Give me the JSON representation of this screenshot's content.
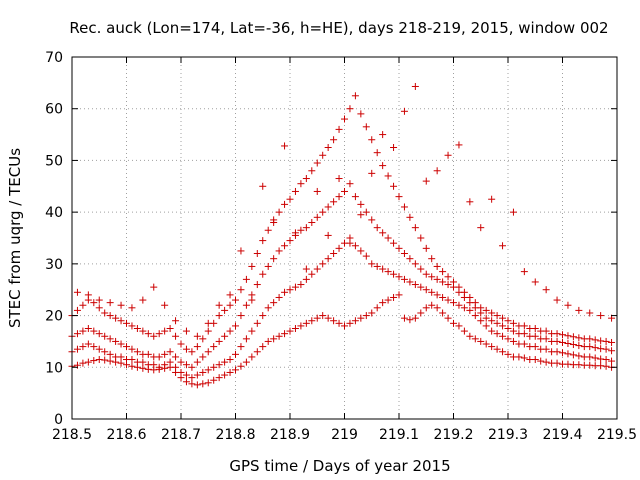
{
  "chart_data": {
    "type": "scatter",
    "title": "Rec. auck (Lon=174, Lat=-36, h=HE), days 218-219, 2015, window 002",
    "xlabel": "GPS time / Days of year 2015",
    "ylabel": "STEC from uqrg / TECUs",
    "xlim": [
      218.5,
      219.5
    ],
    "ylim": [
      0,
      70
    ],
    "x_ticks": [
      "218.5",
      "218.6",
      "218.7",
      "218.8",
      "218.9",
      "219",
      "219.1",
      "219.2",
      "219.3",
      "219.4",
      "219.5"
    ],
    "y_ticks": [
      "0",
      "10",
      "20",
      "30",
      "40",
      "50",
      "60",
      "70"
    ],
    "grid": true,
    "marker": "plus",
    "color": "#cc0000",
    "series": [
      {
        "x": [
          218.5,
          218.51,
          218.52,
          218.53,
          218.54,
          218.55,
          218.56,
          218.57,
          218.58,
          218.59,
          218.6,
          218.61,
          218.62,
          218.63,
          218.64,
          218.65,
          218.66,
          218.67,
          218.68,
          218.69,
          218.7,
          218.71,
          218.72,
          218.73,
          218.74,
          218.75,
          218.76,
          218.77,
          218.78,
          218.79,
          218.8,
          218.81,
          218.82,
          218.83,
          218.84,
          218.85,
          218.86,
          218.87,
          218.88,
          218.89,
          218.9,
          218.91,
          218.92,
          218.93,
          218.94,
          218.95,
          218.96,
          218.97,
          218.98,
          218.99,
          219.0,
          219.01,
          219.02,
          219.03,
          219.04,
          219.05,
          219.06,
          219.07,
          219.08,
          219.09,
          219.1,
          219.11,
          219.12,
          219.13,
          219.14,
          219.15,
          219.16,
          219.17,
          219.18,
          219.19,
          219.2,
          219.21,
          219.22,
          219.23,
          219.24,
          219.25,
          219.26,
          219.27,
          219.28,
          219.29,
          219.3,
          219.31,
          219.32,
          219.33,
          219.34,
          219.35,
          219.36,
          219.37,
          219.38,
          219.39,
          219.4,
          219.41,
          219.42,
          219.43,
          219.44,
          219.45,
          219.46,
          219.47,
          219.48,
          219.49
        ],
        "y": [
          10.2,
          10.4,
          10.8,
          11.0,
          11.3,
          11.5,
          11.4,
          11.2,
          11.0,
          10.8,
          10.5,
          10.2,
          10.0,
          9.8,
          9.6,
          9.5,
          9.6,
          9.8,
          10.0,
          9.0,
          8.0,
          7.2,
          6.8,
          6.6,
          6.8,
          7.0,
          7.5,
          8.0,
          8.5,
          9.0,
          9.5,
          10.2,
          11.0,
          12.0,
          13.0,
          14.0,
          15.0,
          15.5,
          16.0,
          16.5,
          17.0,
          17.5,
          18.0,
          18.5,
          19.0,
          19.5,
          20.0,
          19.5,
          19.0,
          18.5,
          18.0,
          18.5,
          19.0,
          19.5,
          20.0,
          20.5,
          21.5,
          22.5,
          23.0,
          23.5,
          24.0,
          19.5,
          19.2,
          19.5,
          20.5,
          21.5,
          22.0,
          21.5,
          20.5,
          19.5,
          18.5,
          18.0,
          17.0,
          16.0,
          15.5,
          15.0,
          14.5,
          14.0,
          13.5,
          13.0,
          12.5,
          12.0,
          12.0,
          11.8,
          11.5,
          11.5,
          11.2,
          11.0,
          10.8,
          10.8,
          10.6,
          10.6,
          10.5,
          10.5,
          10.4,
          10.4,
          10.3,
          10.3,
          10.2,
          10.0
        ]
      },
      {
        "x": [
          218.5,
          218.51,
          218.52,
          218.53,
          218.54,
          218.55,
          218.56,
          218.57,
          218.58,
          218.59,
          218.6,
          218.61,
          218.62,
          218.63,
          218.64,
          218.65,
          218.66,
          218.67,
          218.68,
          218.69,
          218.7,
          218.71,
          218.72,
          218.73,
          218.74,
          218.75,
          218.76,
          218.77,
          218.78,
          218.79,
          218.8,
          218.81,
          218.82,
          218.83,
          218.84,
          218.85,
          218.86,
          218.87,
          218.88,
          218.89,
          218.9,
          218.91,
          218.92,
          218.93,
          218.94,
          218.95,
          218.96,
          218.97,
          218.98,
          218.99,
          219.0,
          219.01,
          219.02,
          219.03,
          219.04,
          219.05,
          219.06,
          219.07,
          219.08,
          219.09,
          219.1,
          219.11,
          219.12,
          219.13,
          219.14,
          219.15,
          219.16,
          219.17,
          219.18,
          219.19,
          219.2,
          219.21,
          219.22,
          219.23,
          219.24,
          219.25,
          219.26,
          219.27,
          219.28,
          219.29,
          219.3,
          219.31,
          219.32,
          219.33,
          219.34,
          219.35,
          219.36,
          219.37,
          219.38,
          219.39,
          219.4,
          219.41,
          219.42,
          219.43,
          219.44,
          219.45,
          219.46,
          219.47,
          219.48,
          219.49
        ],
        "y": [
          13.0,
          13.5,
          14.0,
          14.5,
          14.0,
          13.5,
          13.0,
          12.5,
          12.0,
          12.0,
          11.5,
          11.5,
          11.0,
          11.0,
          10.5,
          10.5,
          10.0,
          10.5,
          11.0,
          10.0,
          9.0,
          8.5,
          8.0,
          8.5,
          9.0,
          9.5,
          10.0,
          10.5,
          11.0,
          11.5,
          12.5,
          14.0,
          15.5,
          17.0,
          18.5,
          20.0,
          21.5,
          22.5,
          23.5,
          24.5,
          25.0,
          25.5,
          26.0,
          27.0,
          28.0,
          29.0,
          30.0,
          31.0,
          32.0,
          33.0,
          34.0,
          35.0,
          33.5,
          32.5,
          31.5,
          30.0,
          29.5,
          29.0,
          28.5,
          28.0,
          27.5,
          27.0,
          26.5,
          26.0,
          25.5,
          25.0,
          24.5,
          24.0,
          23.5,
          23.0,
          22.5,
          22.0,
          21.5,
          21.0,
          20.0,
          19.0,
          18.0,
          17.0,
          16.5,
          16.0,
          15.5,
          15.0,
          14.5,
          14.5,
          14.0,
          14.0,
          13.5,
          13.5,
          13.0,
          13.0,
          12.8,
          12.6,
          12.4,
          12.2,
          12.0,
          12.0,
          11.8,
          11.6,
          11.5,
          11.2
        ]
      },
      {
        "x": [
          218.5,
          218.51,
          218.52,
          218.53,
          218.54,
          218.55,
          218.56,
          218.57,
          218.58,
          218.59,
          218.6,
          218.61,
          218.62,
          218.63,
          218.64,
          218.65,
          218.66,
          218.67,
          218.68,
          218.69,
          218.7,
          218.71,
          218.72,
          218.73,
          218.74,
          218.75,
          218.76,
          218.77,
          218.78,
          218.79,
          218.8,
          218.81,
          218.82,
          218.83,
          218.84,
          218.85,
          218.86,
          218.87,
          218.88,
          218.89,
          218.9,
          218.91,
          218.92,
          218.93,
          218.94,
          218.95,
          218.96,
          218.97,
          218.98,
          218.99,
          219.0,
          219.01,
          219.02,
          219.03,
          219.04,
          219.05,
          219.06,
          219.07,
          219.08,
          219.09,
          219.1,
          219.11,
          219.12,
          219.13,
          219.14,
          219.15,
          219.16,
          219.17,
          219.18,
          219.19,
          219.2,
          219.21,
          219.22,
          219.23,
          219.24,
          219.25,
          219.26,
          219.27,
          219.28,
          219.29,
          219.3,
          219.31,
          219.32,
          219.33,
          219.34,
          219.35,
          219.36,
          219.37,
          219.38,
          219.39,
          219.4,
          219.41,
          219.42,
          219.43,
          219.44,
          219.45,
          219.46,
          219.47,
          219.48,
          219.49
        ],
        "y": [
          16.0,
          16.5,
          17.0,
          17.5,
          17.0,
          16.5,
          16.0,
          15.5,
          15.0,
          14.5,
          14.0,
          13.5,
          13.0,
          12.5,
          12.5,
          12.0,
          12.0,
          12.5,
          13.0,
          12.0,
          11.0,
          10.5,
          10.0,
          11.0,
          12.0,
          13.0,
          14.0,
          15.0,
          16.0,
          17.0,
          18.0,
          20.0,
          22.0,
          24.0,
          26.0,
          28.0,
          29.5,
          31.0,
          32.5,
          33.5,
          34.5,
          35.5,
          36.5,
          37.0,
          38.0,
          39.0,
          40.0,
          41.0,
          42.0,
          43.0,
          44.0,
          45.5,
          43.0,
          41.5,
          40.0,
          38.5,
          37.0,
          36.0,
          35.0,
          34.0,
          33.0,
          32.0,
          31.0,
          30.0,
          29.0,
          28.0,
          27.5,
          27.0,
          26.5,
          26.0,
          25.5,
          24.5,
          23.5,
          22.5,
          21.5,
          20.5,
          19.5,
          19.0,
          18.5,
          18.0,
          17.5,
          17.0,
          16.5,
          16.5,
          16.0,
          16.0,
          15.5,
          15.5,
          15.0,
          15.0,
          14.8,
          14.6,
          14.4,
          14.2,
          14.0,
          14.0,
          13.8,
          13.6,
          13.5,
          13.2
        ]
      },
      {
        "x": [
          218.5,
          218.51,
          218.52,
          218.53,
          218.54,
          218.55,
          218.56,
          218.57,
          218.58,
          218.59,
          218.6,
          218.61,
          218.62,
          218.63,
          218.64,
          218.65,
          218.66,
          218.67,
          218.68,
          218.69,
          218.7,
          218.71,
          218.72,
          218.73,
          218.74,
          218.75,
          218.76,
          218.77,
          218.78,
          218.79,
          218.8,
          218.81,
          218.82,
          218.83,
          218.84,
          218.85,
          218.86,
          218.87,
          218.88,
          218.89,
          218.9,
          218.91,
          218.92,
          218.93,
          218.94,
          218.95,
          218.96,
          218.97,
          218.98,
          218.99,
          219.0,
          219.01,
          219.02,
          219.03,
          219.04,
          219.05,
          219.06,
          219.07,
          219.08,
          219.09,
          219.1,
          219.11,
          219.12,
          219.13,
          219.14,
          219.15,
          219.16,
          219.17,
          219.18,
          219.19,
          219.2,
          219.21,
          219.22,
          219.23,
          219.24,
          219.25,
          219.26,
          219.27,
          219.28,
          219.29,
          219.3,
          219.31,
          219.32,
          219.33,
          219.34,
          219.35,
          219.36,
          219.37,
          219.38,
          219.39,
          219.4,
          219.41,
          219.42,
          219.43,
          219.44,
          219.45,
          219.46,
          219.47,
          219.48,
          219.49
        ],
        "y": [
          20.0,
          21.0,
          22.0,
          23.0,
          22.5,
          21.5,
          20.5,
          20.0,
          19.5,
          19.0,
          18.5,
          18.0,
          17.5,
          17.0,
          16.5,
          16.0,
          16.5,
          17.0,
          17.5,
          16.0,
          14.5,
          13.5,
          13.0,
          14.0,
          15.5,
          17.0,
          18.5,
          20.0,
          21.0,
          22.0,
          23.0,
          25.0,
          27.0,
          29.5,
          32.0,
          34.5,
          36.5,
          38.5,
          40.0,
          41.5,
          42.5,
          44.0,
          45.5,
          46.5,
          48.0,
          49.5,
          51.0,
          52.5,
          54.0,
          56.0,
          58.0,
          60.0,
          62.5,
          59.0,
          56.5,
          54.0,
          51.5,
          49.0,
          47.0,
          45.0,
          43.0,
          41.0,
          39.0,
          37.0,
          35.0,
          33.0,
          31.0,
          29.5,
          28.5,
          27.5,
          26.5,
          25.5,
          24.5,
          23.5,
          22.5,
          21.5,
          21.0,
          20.5,
          20.0,
          19.5,
          19.0,
          18.5,
          18.0,
          18.0,
          17.5,
          17.5,
          17.0,
          17.0,
          16.5,
          16.5,
          16.3,
          16.1,
          15.9,
          15.7,
          15.5,
          15.5,
          15.3,
          15.1,
          15.0,
          14.8
        ]
      },
      {
        "x": [
          218.51,
          218.53,
          218.55,
          218.57,
          218.59,
          218.61,
          218.63,
          218.65,
          218.67,
          218.69,
          218.71,
          218.73,
          218.75,
          218.77,
          218.79,
          218.81,
          218.83,
          218.85,
          218.87,
          218.89,
          218.91,
          218.93,
          218.95,
          218.97,
          218.99,
          219.01,
          219.03,
          219.05,
          219.07,
          219.09,
          219.11,
          219.13,
          219.15,
          219.17,
          219.19,
          219.21,
          219.23,
          219.25,
          219.27,
          219.29,
          219.31,
          219.33,
          219.35,
          219.37,
          219.39,
          219.41,
          219.43,
          219.45,
          219.47,
          219.49
        ],
        "y": [
          24.5,
          24.0,
          23.0,
          22.5,
          22.0,
          21.5,
          23.0,
          25.5,
          22.0,
          19.0,
          17.0,
          16.0,
          18.5,
          22.0,
          24.0,
          32.5,
          23.0,
          45.0,
          38.0,
          52.8,
          36.0,
          29.0,
          44.0,
          35.5,
          46.5,
          34.0,
          39.5,
          47.5,
          55.0,
          52.5,
          59.5,
          64.3,
          46.0,
          48.0,
          51.0,
          53.0,
          42.0,
          37.0,
          42.5,
          33.5,
          40.0,
          28.5,
          26.5,
          25.0,
          23.0,
          22.0,
          21.0,
          20.5,
          20.0,
          19.5
        ]
      }
    ]
  }
}
